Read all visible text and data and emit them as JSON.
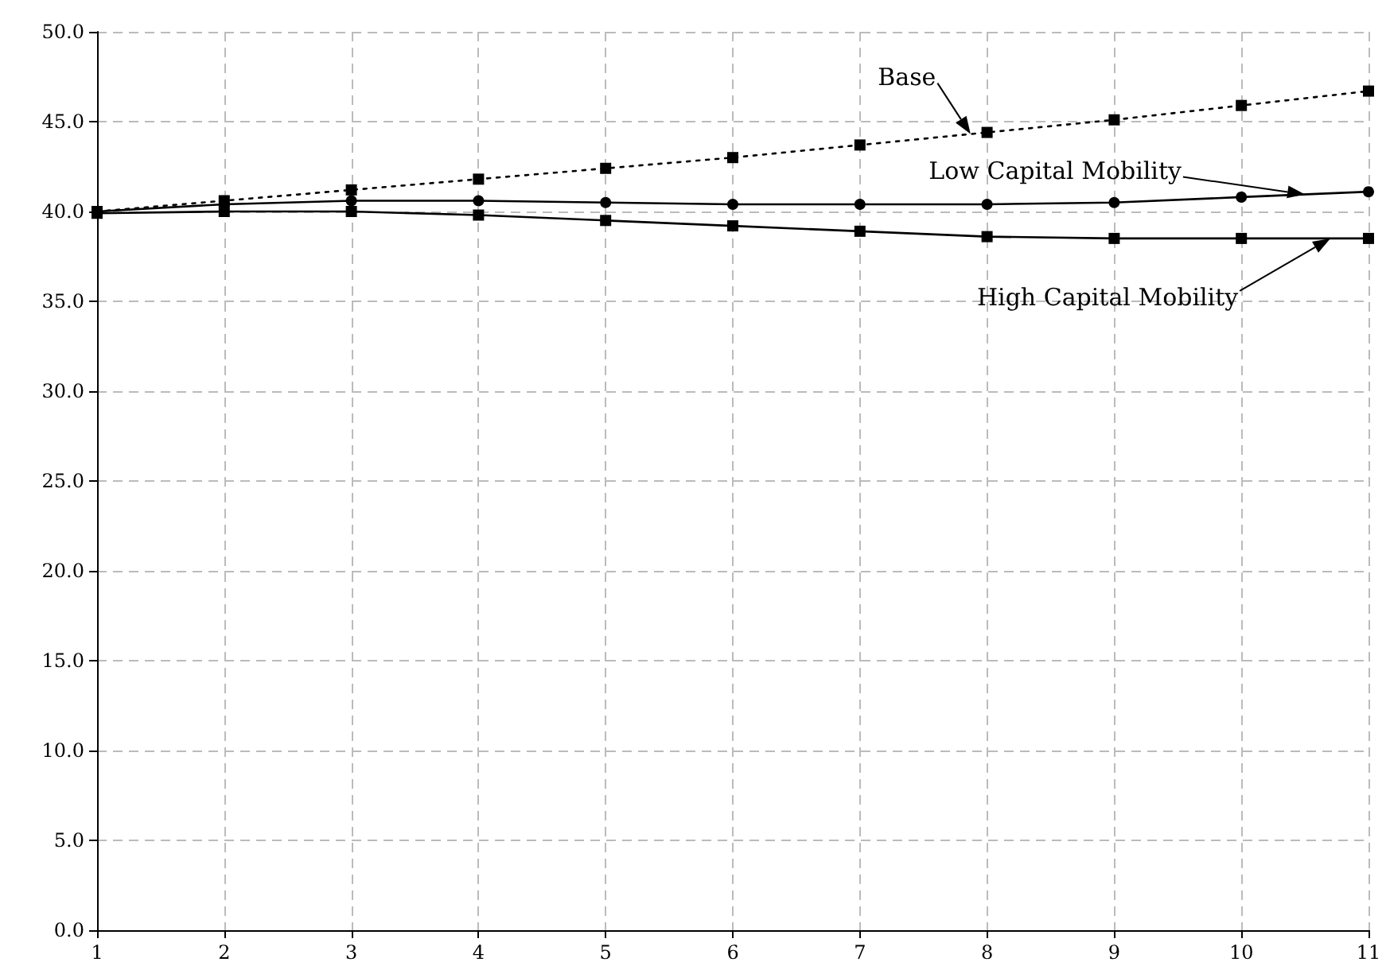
{
  "chart_data": {
    "type": "line",
    "x": [
      1,
      2,
      3,
      4,
      5,
      6,
      7,
      8,
      9,
      10,
      11
    ],
    "series": [
      {
        "name": "Base",
        "color": "#000000",
        "marker": "square",
        "line_style": "dotted",
        "values": [
          40.0,
          40.6,
          41.2,
          41.8,
          42.4,
          43.0,
          43.7,
          44.4,
          45.1,
          45.9,
          46.7
        ]
      },
      {
        "name": "Low Capital Mobility",
        "color": "#000000",
        "marker": "circle",
        "line_style": "solid",
        "values": [
          40.0,
          40.4,
          40.6,
          40.6,
          40.5,
          40.4,
          40.4,
          40.4,
          40.5,
          40.8,
          41.1
        ]
      },
      {
        "name": "High Capital Mobility",
        "color": "#000000",
        "marker": "square",
        "line_style": "solid",
        "values": [
          39.9,
          40.0,
          40.0,
          39.8,
          39.5,
          39.2,
          38.9,
          38.6,
          38.5,
          38.5,
          38.5
        ]
      }
    ],
    "xlim": [
      1,
      11
    ],
    "xticks": [
      1,
      2,
      3,
      4,
      5,
      6,
      7,
      8,
      9,
      10,
      11
    ],
    "ylim": [
      0,
      50
    ],
    "yticks": [
      {
        "value": 0,
        "label": "0.0"
      },
      {
        "value": 5,
        "label": "5.0"
      },
      {
        "value": 10,
        "label": "10.0"
      },
      {
        "value": 15,
        "label": "15.0"
      },
      {
        "value": 20,
        "label": "20.0"
      },
      {
        "value": 25,
        "label": "25.0"
      },
      {
        "value": 30,
        "label": "30.0"
      },
      {
        "value": 35,
        "label": "35.0"
      },
      {
        "value": 40,
        "label": "40.0"
      },
      {
        "value": 45,
        "label": "45.0"
      },
      {
        "value": 50,
        "label": "50.0"
      }
    ],
    "grid": true
  }
}
